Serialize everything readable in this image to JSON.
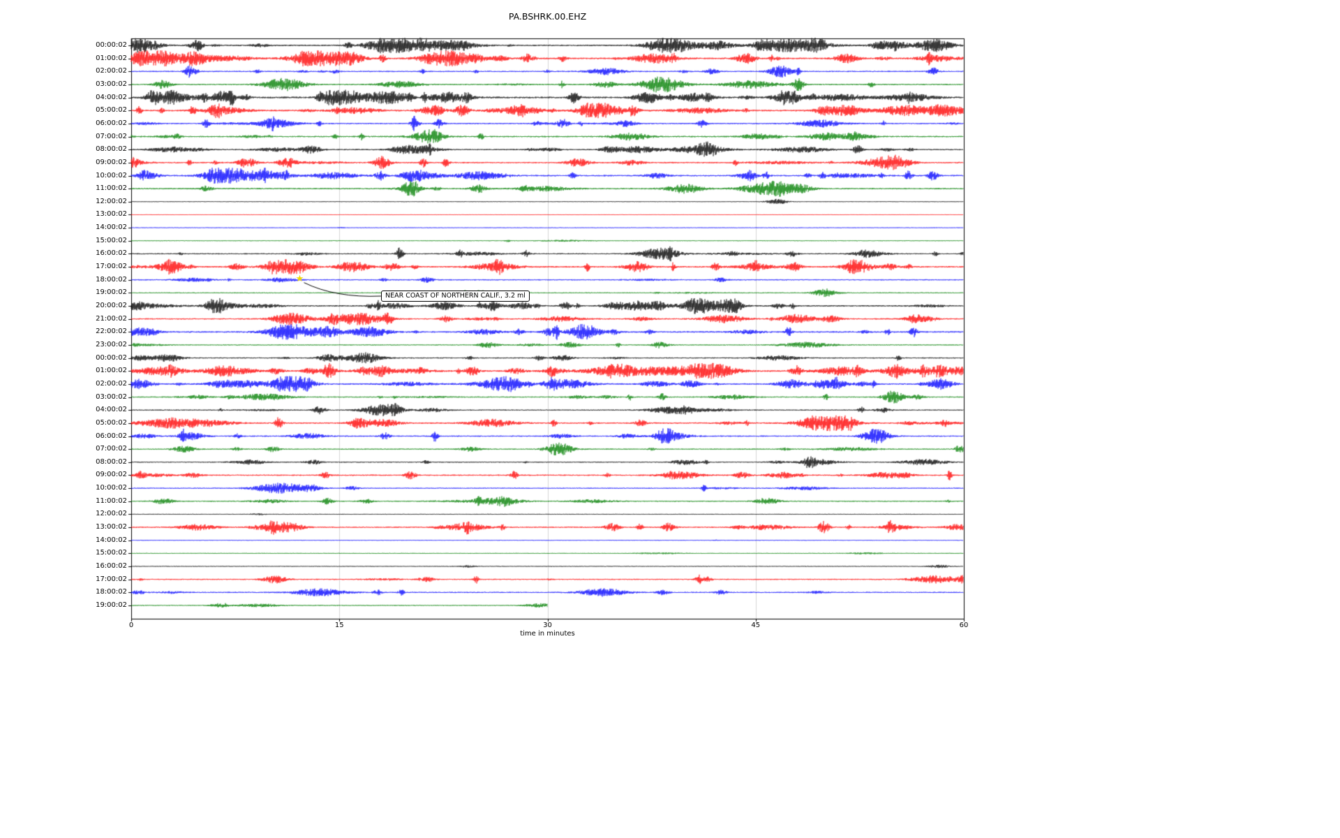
{
  "title": "PA.BSHRK.00.EHZ",
  "chart_data": {
    "type": "line",
    "subtype": "seismogram-dayplot",
    "title": "PA.BSHRK.00.EHZ",
    "xlabel": "time in minutes",
    "xlim": [
      0,
      60
    ],
    "x_ticks": [
      0,
      15,
      30,
      45,
      60
    ],
    "grid_x": [
      15,
      30,
      45
    ],
    "grid_color": "#cccccc",
    "trace_palette": [
      "#000000",
      "#ff0000",
      "#0000ff",
      "#008000"
    ],
    "rows": [
      {
        "label": "00:00:02",
        "color": 0,
        "activity": 0.75
      },
      {
        "label": "01:00:02",
        "color": 1,
        "activity": 0.8
      },
      {
        "label": "02:00:02",
        "color": 2,
        "activity": 0.55
      },
      {
        "label": "03:00:02",
        "color": 3,
        "activity": 0.6
      },
      {
        "label": "04:00:02",
        "color": 0,
        "activity": 0.9
      },
      {
        "label": "05:00:02",
        "color": 1,
        "activity": 0.85
      },
      {
        "label": "06:00:02",
        "color": 2,
        "activity": 0.6
      },
      {
        "label": "07:00:02",
        "color": 3,
        "activity": 0.65
      },
      {
        "label": "08:00:02",
        "color": 0,
        "activity": 0.6
      },
      {
        "label": "09:00:02",
        "color": 1,
        "activity": 0.7
      },
      {
        "label": "10:00:02",
        "color": 2,
        "activity": 0.7
      },
      {
        "label": "11:00:02",
        "color": 3,
        "activity": 0.65
      },
      {
        "label": "12:00:02",
        "color": 0,
        "activity": 0.12
      },
      {
        "label": "13:00:02",
        "color": 1,
        "activity": 0.05
      },
      {
        "label": "14:00:02",
        "color": 2,
        "activity": 0.15
      },
      {
        "label": "15:00:02",
        "color": 3,
        "activity": 0.2
      },
      {
        "label": "16:00:02",
        "color": 0,
        "activity": 0.5
      },
      {
        "label": "17:00:02",
        "color": 1,
        "activity": 0.75
      },
      {
        "label": "18:00:02",
        "color": 2,
        "activity": 0.5
      },
      {
        "label": "19:00:02",
        "color": 3,
        "activity": 0.4
      },
      {
        "label": "20:00:02",
        "color": 0,
        "activity": 0.7
      },
      {
        "label": "21:00:02",
        "color": 1,
        "activity": 0.6
      },
      {
        "label": "22:00:02",
        "color": 2,
        "activity": 0.75
      },
      {
        "label": "23:00:02",
        "color": 3,
        "activity": 0.4
      },
      {
        "label": "00:00:02",
        "color": 0,
        "activity": 0.5
      },
      {
        "label": "01:00:02",
        "color": 1,
        "activity": 0.8
      },
      {
        "label": "02:00:02",
        "color": 2,
        "activity": 0.7
      },
      {
        "label": "03:00:02",
        "color": 3,
        "activity": 0.5
      },
      {
        "label": "04:00:02",
        "color": 0,
        "activity": 0.5
      },
      {
        "label": "05:00:02",
        "color": 1,
        "activity": 0.7
      },
      {
        "label": "06:00:02",
        "color": 2,
        "activity": 0.55
      },
      {
        "label": "07:00:02",
        "color": 3,
        "activity": 0.5
      },
      {
        "label": "08:00:02",
        "color": 0,
        "activity": 0.45
      },
      {
        "label": "09:00:02",
        "color": 1,
        "activity": 0.6
      },
      {
        "label": "10:00:02",
        "color": 2,
        "activity": 0.4
      },
      {
        "label": "11:00:02",
        "color": 3,
        "activity": 0.5
      },
      {
        "label": "12:00:02",
        "color": 0,
        "activity": 0.22
      },
      {
        "label": "13:00:02",
        "color": 1,
        "activity": 0.6
      },
      {
        "label": "14:00:02",
        "color": 2,
        "activity": 0.15
      },
      {
        "label": "15:00:02",
        "color": 3,
        "activity": 0.2
      },
      {
        "label": "16:00:02",
        "color": 0,
        "activity": 0.2
      },
      {
        "label": "17:00:02",
        "color": 1,
        "activity": 0.5
      },
      {
        "label": "18:00:02",
        "color": 2,
        "activity": 0.5
      },
      {
        "label": "19:00:02",
        "color": 3,
        "activity": 0.3,
        "end_minute": 30
      }
    ],
    "annotation": {
      "text": "NEAR COAST OF NORTHERN CALIF., 3.2 ml",
      "row_index": 18,
      "row_label": "18:00:02",
      "minute": 12.2,
      "marker": "yellow-star",
      "marker_glyph": "★",
      "marker_color": "#f0d800"
    }
  }
}
